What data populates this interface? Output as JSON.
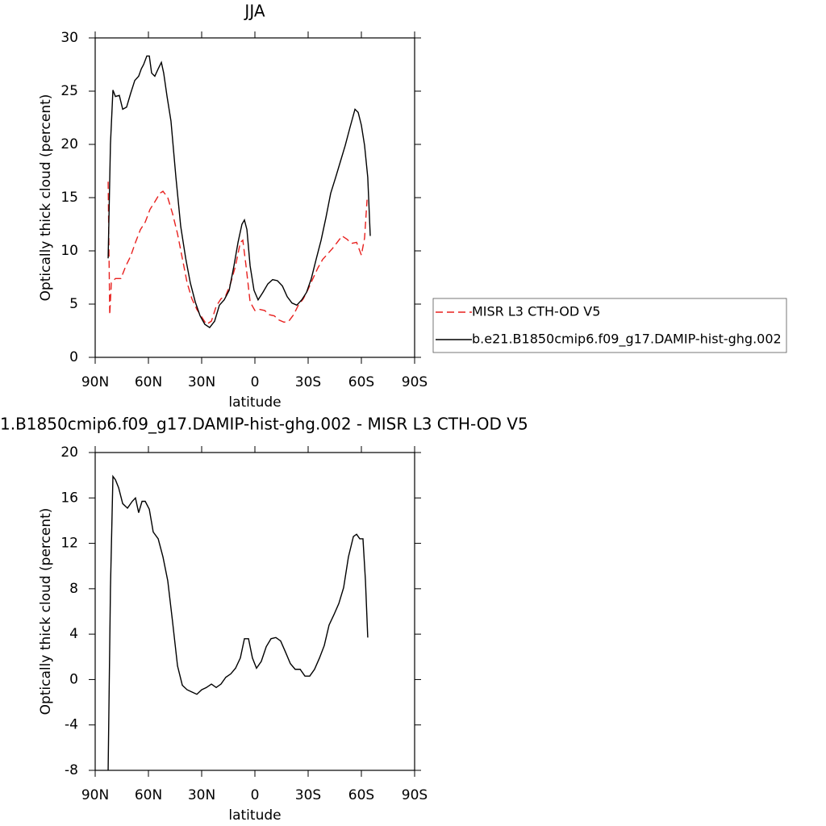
{
  "chart_data": [
    {
      "type": "line",
      "title": "JJA",
      "x_label": "latitude",
      "y_label": "Optically thick cloud (percent)",
      "xlim": [
        90,
        -90
      ],
      "xticks": [
        {
          "value": 90,
          "label": "90N"
        },
        {
          "value": 60,
          "label": "60N"
        },
        {
          "value": 30,
          "label": "30N"
        },
        0,
        {
          "value": -30,
          "label": "30S"
        },
        {
          "value": -60,
          "label": "60S"
        },
        {
          "value": -90,
          "label": "90S"
        }
      ],
      "ylim": [
        0,
        30
      ],
      "yticks": [
        0,
        5,
        10,
        15,
        20,
        25,
        30
      ],
      "legend": "outside right",
      "series": [
        {
          "name": "MISR L3 CTH-OD V5",
          "color": "#e8201e",
          "line_style": "dashed",
          "x": [
            82.7,
            81.8,
            80.9,
            78.6,
            75.5,
            72.7,
            70,
            67.3,
            64.5,
            61.8,
            59.1,
            56.4,
            53.6,
            51.8,
            49.1,
            46.4,
            43.6,
            40.9,
            38.2,
            35.5,
            32.7,
            30,
            27.3,
            24.5,
            21.8,
            19.1,
            16.4,
            13.6,
            10.9,
            8.2,
            6.8,
            5,
            2.7,
            0,
            -2.7,
            -5.5,
            -8.2,
            -10.9,
            -13.6,
            -16.4,
            -19.1,
            -21.8,
            -24.5,
            -27.3,
            -30,
            -32.7,
            -35.5,
            -38.2,
            -40.9,
            -43.6,
            -46.4,
            -49.1,
            -51.8,
            -54.5,
            -57.3,
            -60,
            -61.8,
            -63.2
          ],
          "values": [
            16.5,
            4.0,
            7.0,
            7.4,
            7.4,
            8.6,
            9.5,
            10.8,
            12.0,
            12.7,
            13.9,
            14.6,
            15.4,
            15.6,
            15.0,
            13.5,
            11.6,
            9.3,
            7.0,
            5.5,
            4.5,
            3.8,
            3.1,
            3.4,
            4.8,
            5.5,
            5.8,
            7.0,
            8.6,
            10.8,
            11.0,
            8.6,
            5.2,
            4.4,
            4.5,
            4.4,
            4.0,
            3.9,
            3.5,
            3.3,
            3.4,
            4.0,
            4.9,
            5.5,
            6.4,
            7.4,
            8.4,
            9.2,
            9.7,
            10.2,
            10.8,
            11.4,
            11.1,
            10.7,
            10.8,
            9.6,
            11.2,
            14.8
          ]
        },
        {
          "name": "b.e21.B1850cmip6.f09_g17.DAMIP-hist-ghg.002",
          "color": "#000000",
          "line_style": "solid",
          "x": [
            82.7,
            81.4,
            80,
            78.6,
            76.4,
            74.5,
            72.3,
            70,
            67.7,
            65.5,
            64,
            62.7,
            60.9,
            59.5,
            58.2,
            56.4,
            54.5,
            52.7,
            51.4,
            49.5,
            47.3,
            44.5,
            41.8,
            39,
            36.4,
            33.6,
            30.9,
            28.2,
            25.5,
            22.7,
            20,
            17.3,
            14.5,
            11.8,
            9.5,
            7.3,
            5.9,
            4.5,
            2.7,
            0.5,
            -1.8,
            -4.5,
            -7.3,
            -10,
            -12.7,
            -15.5,
            -18.2,
            -20.9,
            -23.6,
            -26.4,
            -29.1,
            -31.8,
            -34.5,
            -37.3,
            -40,
            -42.7,
            -45.5,
            -48.2,
            -50.9,
            -53.6,
            -56.4,
            -58.2,
            -60,
            -61.8,
            -63.6,
            -65
          ],
          "values": [
            9.3,
            20.0,
            25.1,
            24.5,
            24.6,
            23.3,
            23.5,
            24.8,
            26.0,
            26.4,
            27.1,
            27.5,
            28.3,
            28.3,
            26.7,
            26.4,
            27.1,
            27.7,
            26.7,
            24.5,
            22.2,
            16.9,
            12.3,
            9.3,
            7.0,
            5.2,
            3.9,
            3.1,
            2.8,
            3.4,
            4.9,
            5.4,
            6.3,
            8.6,
            10.8,
            12.5,
            12.9,
            12.0,
            8.6,
            6.3,
            5.4,
            6.1,
            6.9,
            7.3,
            7.2,
            6.7,
            5.7,
            5.1,
            4.9,
            5.4,
            6.1,
            7.4,
            9.2,
            11.0,
            13.1,
            15.4,
            16.9,
            18.4,
            19.9,
            21.6,
            23.3,
            23.0,
            21.8,
            19.9,
            16.9,
            11.4
          ]
        }
      ]
    },
    {
      "type": "line",
      "title": "1.B1850cmip6.f09_g17.DAMIP-hist-ghg.002 - MISR L3 CTH-OD V5",
      "x_label": "latitude",
      "y_label": "Optically thick cloud (percent)",
      "xlim": [
        90,
        -90
      ],
      "xticks": [
        {
          "value": 90,
          "label": "90N"
        },
        {
          "value": 60,
          "label": "60N"
        },
        {
          "value": 30,
          "label": "30N"
        },
        0,
        {
          "value": -30,
          "label": "30S"
        },
        {
          "value": -60,
          "label": "60S"
        },
        {
          "value": -90,
          "label": "90S"
        }
      ],
      "ylim": [
        -8,
        20
      ],
      "yticks": [
        -8,
        -4,
        0,
        4,
        8,
        12,
        16,
        20
      ],
      "color": "#000000",
      "line_style": "solid",
      "x": [
        82.7,
        81.4,
        80,
        78.6,
        76.8,
        74.5,
        71.8,
        69.1,
        67.3,
        65.5,
        63.6,
        61.8,
        59.5,
        57.3,
        54.5,
        51.8,
        49.1,
        46.4,
        43.6,
        40.9,
        38.2,
        35.5,
        32.7,
        30,
        27.3,
        24.5,
        21.8,
        19.1,
        16.4,
        13.6,
        10.9,
        8.2,
        5.9,
        3.6,
        1.4,
        -0.9,
        -3.6,
        -6.4,
        -9.1,
        -11.8,
        -14.5,
        -17.3,
        -20,
        -22.7,
        -25.5,
        -28.2,
        -30.9,
        -33.6,
        -36.4,
        -39.1,
        -41.8,
        -44.5,
        -47.3,
        -50,
        -52.7,
        -55.5,
        -57.3,
        -59.1,
        -60.9,
        -62.3,
        -63.6
      ],
      "values": [
        -8,
        8.0,
        17.9,
        17.6,
        16.9,
        15.5,
        15.1,
        15.7,
        16.0,
        14.7,
        15.7,
        15.7,
        15.0,
        13.0,
        12.4,
        10.8,
        8.7,
        5.1,
        1.2,
        -0.5,
        -0.9,
        -1.1,
        -1.3,
        -0.9,
        -0.7,
        -0.4,
        -0.7,
        -0.4,
        0.2,
        0.5,
        1.0,
        1.9,
        3.6,
        3.6,
        1.9,
        1.0,
        1.6,
        2.9,
        3.6,
        3.7,
        3.4,
        2.4,
        1.4,
        0.9,
        0.9,
        0.3,
        0.3,
        0.9,
        1.9,
        3.0,
        4.8,
        5.7,
        6.7,
        8.1,
        10.8,
        12.6,
        12.8,
        12.4,
        12.4,
        8.7,
        3.7
      ]
    }
  ]
}
